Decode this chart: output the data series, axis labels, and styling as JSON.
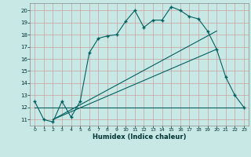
{
  "xlabel": "Humidex (Indice chaleur)",
  "ylabel": "",
  "background_color": "#c8e8e5",
  "grid_color": "#d8b0b0",
  "line_color": "#006060",
  "xlim": [
    -0.5,
    23.5
  ],
  "ylim": [
    10.5,
    20.6
  ],
  "xticks": [
    0,
    1,
    2,
    3,
    4,
    5,
    6,
    7,
    8,
    9,
    10,
    11,
    12,
    13,
    14,
    15,
    16,
    17,
    18,
    19,
    20,
    21,
    22,
    23
  ],
  "yticks": [
    11,
    12,
    13,
    14,
    15,
    16,
    17,
    18,
    19,
    20
  ],
  "series1": {
    "x": [
      0,
      1,
      2,
      3,
      4,
      5,
      6,
      7,
      8,
      9,
      10,
      11,
      12,
      13,
      14,
      15,
      16,
      17,
      18,
      19,
      20,
      21,
      22,
      23
    ],
    "y": [
      12.5,
      11.0,
      10.8,
      12.5,
      11.2,
      12.5,
      16.5,
      17.7,
      17.9,
      18.0,
      19.1,
      20.0,
      18.6,
      19.2,
      19.2,
      20.3,
      20.0,
      19.5,
      19.3,
      18.3,
      16.8,
      14.5,
      13.0,
      12.0
    ]
  },
  "series2": {
    "x": [
      0,
      23
    ],
    "y": [
      12.0,
      12.0
    ]
  },
  "series3": {
    "x": [
      2,
      20
    ],
    "y": [
      11.0,
      16.8
    ]
  },
  "series4": {
    "x": [
      2,
      20
    ],
    "y": [
      11.0,
      18.3
    ]
  }
}
